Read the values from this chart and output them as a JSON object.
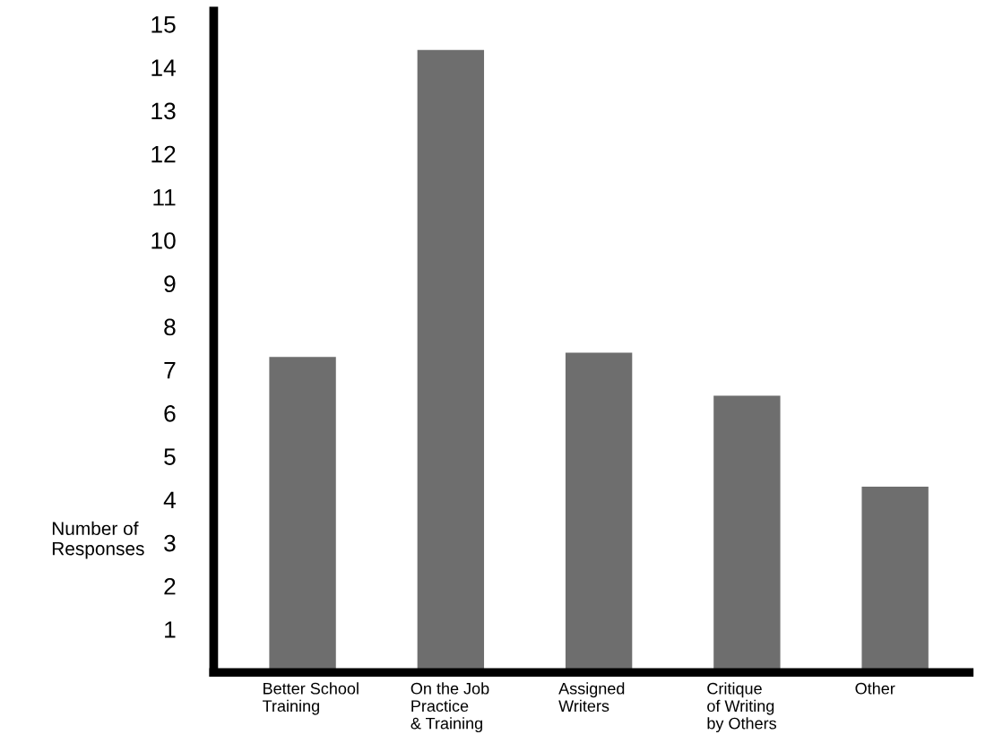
{
  "chart_data": {
    "type": "bar",
    "ylabel": "Number of\nResponses",
    "categories": [
      "Better School\nTraining",
      "On the Job\nPractice\n& Training",
      "Assigned\nWriters",
      "Critique\nof Writing\nby Others",
      "Other"
    ],
    "values": [
      7.3,
      14.4,
      7.4,
      6.4,
      4.3
    ],
    "color": "#6e6e6e",
    "ylim": [
      0,
      15.3
    ],
    "yticks": [
      1,
      2,
      3,
      4,
      5,
      6,
      7,
      8,
      9,
      10,
      11,
      12,
      13,
      14,
      15
    ],
    "grid": false
  }
}
